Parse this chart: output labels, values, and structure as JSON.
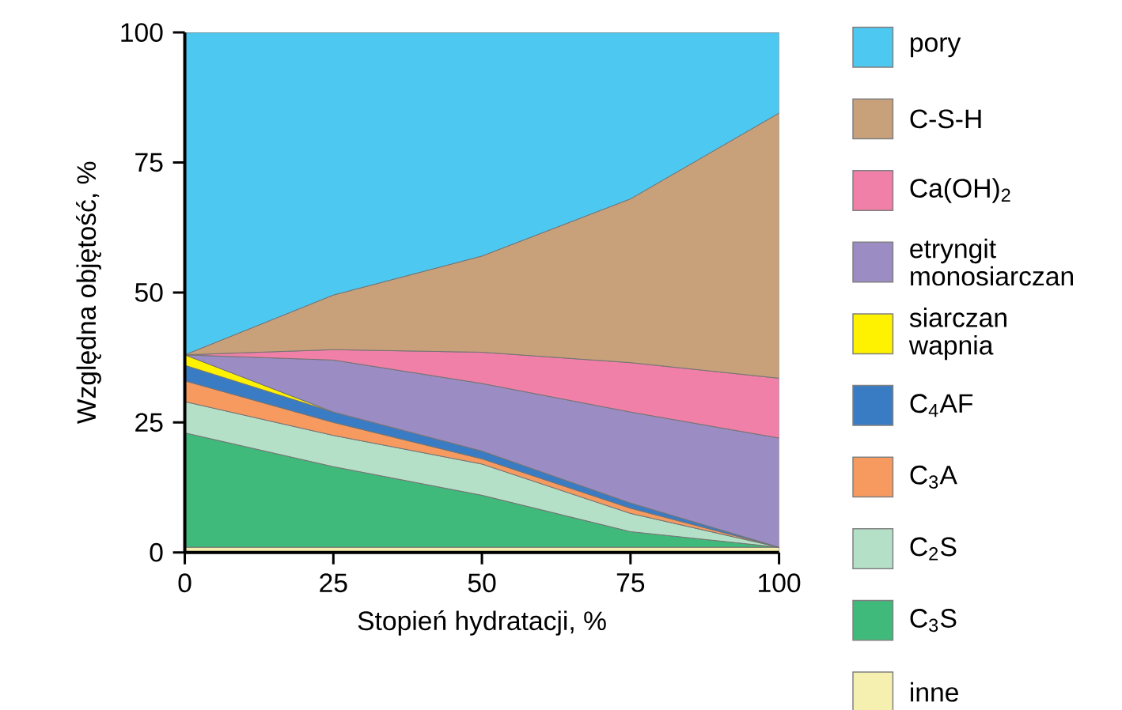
{
  "chart_data": {
    "type": "area",
    "stacked": true,
    "xlabel": "Stopień hydratacji, %",
    "ylabel": "Względna objętość, %",
    "x": [
      0,
      25,
      50,
      75,
      100
    ],
    "xlim": [
      0,
      100
    ],
    "ylim": [
      0,
      100
    ],
    "xticks": [
      0,
      25,
      50,
      75,
      100
    ],
    "yticks": [
      0,
      25,
      50,
      75,
      100
    ],
    "legend": "right",
    "series": [
      {
        "name": "inne",
        "color": "#f5f0b0",
        "values": [
          1,
          1,
          1,
          1,
          1
        ]
      },
      {
        "name": "C$_{3}$S",
        "color": "#3fba7a",
        "values": [
          22,
          15.5,
          10,
          3,
          0
        ]
      },
      {
        "name": "C$_{2}$S",
        "color": "#b5e0c8",
        "values": [
          6,
          6,
          6,
          3.5,
          0
        ]
      },
      {
        "name": "C$_{3}$A",
        "color": "#f79a60",
        "values": [
          4,
          2.5,
          1,
          1,
          0
        ]
      },
      {
        "name": "C$_{4}$AF",
        "color": "#3a7cc4",
        "values": [
          3,
          2,
          1.5,
          1,
          0
        ]
      },
      {
        "name": "siarczan wapnia",
        "color": "#fff200",
        "values": [
          2,
          0,
          null,
          null,
          null
        ]
      },
      {
        "name": "etryngit monosiarczan",
        "color": "#9b8cc4",
        "values": [
          0,
          10,
          13,
          17.5,
          21
        ]
      },
      {
        "name": "Ca(OH)$_{2}$",
        "color": "#f080a8",
        "values": [
          0,
          2,
          6,
          9.5,
          11.5
        ]
      },
      {
        "name": "C-S-H",
        "color": "#c8a07a",
        "values": [
          0,
          10.5,
          18.5,
          31.5,
          51
        ]
      },
      {
        "name": "pory",
        "color": "#4dc8f0",
        "values": [
          62,
          50.5,
          43,
          32,
          15.5
        ]
      }
    ]
  }
}
